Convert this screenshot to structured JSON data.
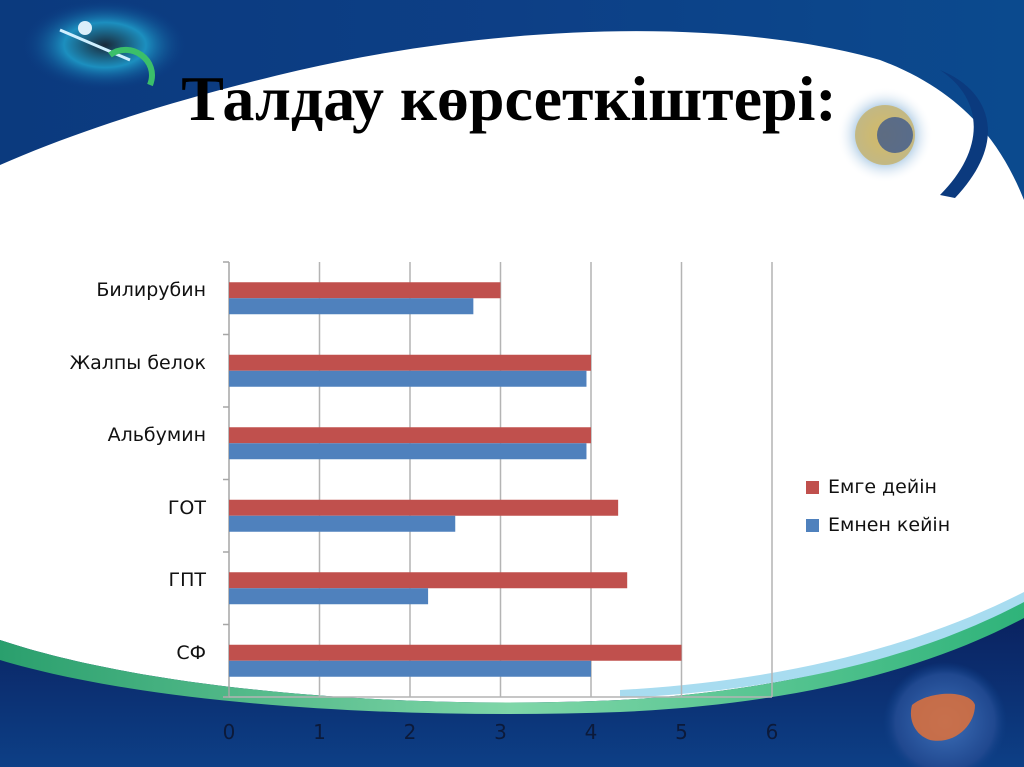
{
  "slide": {
    "title": "Талдау көрсеткіштері:",
    "decor": {
      "top_left_image": "syringe-vaccine-image",
      "top_right_image": "virus-particle-image",
      "bottom_right_image": "liver-xray-image"
    },
    "colors": {
      "header_blue": "#0d3f86",
      "wave_green": "#2fb37a",
      "footer_navy": "#0a1f5c"
    }
  },
  "chart_data": {
    "type": "bar",
    "orientation": "horizontal",
    "title": "",
    "xlabel": "",
    "ylabel": "",
    "categories": [
      "Билирубин",
      "Жалпы белок",
      "Альбумин",
      "ГОТ",
      "ГПТ",
      "СФ"
    ],
    "series": [
      {
        "name": "Емге дейін",
        "color": "#c0504d",
        "values": [
          3.0,
          4.0,
          4.0,
          4.3,
          4.4,
          5.0
        ]
      },
      {
        "name": "Емнен кейін",
        "color": "#4f81bd",
        "values": [
          2.7,
          3.95,
          3.95,
          2.5,
          2.2,
          4.0
        ]
      }
    ],
    "xlim": [
      0,
      6
    ],
    "x_ticks": [
      "0",
      "1",
      "2",
      "3",
      "4",
      "5",
      "6"
    ],
    "grid": {
      "vertical": true,
      "horizontal": false
    },
    "legend_position": "right"
  }
}
